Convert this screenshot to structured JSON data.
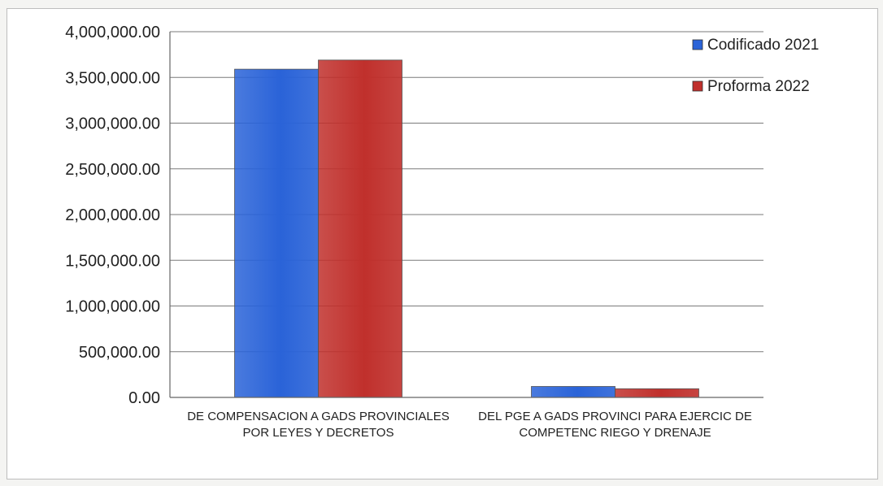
{
  "chart_data": {
    "type": "bar",
    "categories": [
      [
        "DE COMPENSACION A GADS PROVINCIALES",
        "POR LEYES Y DECRETOS"
      ],
      [
        "DEL PGE A GADS PROVINCI PARA EJERCIC DE",
        "COMPETENC RIEGO Y DRENAJE"
      ]
    ],
    "series": [
      {
        "name": "Codificado 2021",
        "values": [
          3590000,
          120000
        ],
        "color": "#2a63d8"
      },
      {
        "name": "Proforma 2022",
        "values": [
          3690000,
          95000
        ],
        "color": "#c0302c"
      }
    ],
    "ylim": [
      0,
      4000000
    ],
    "yticks": [
      "0.00",
      "500,000.00",
      "1,000,000.00",
      "1,500,000.00",
      "2,000,000.00",
      "2,500,000.00",
      "3,000,000.00",
      "3,500,000.00",
      "4,000,000.00"
    ],
    "grid": true,
    "legend_position": "top-right"
  }
}
